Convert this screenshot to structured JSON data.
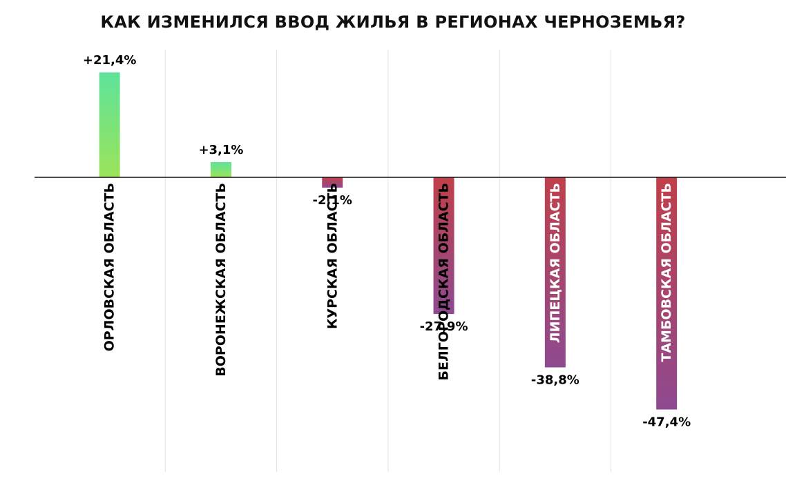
{
  "chart_data": {
    "type": "bar",
    "title": "КАК ИЗМЕНИЛСЯ ВВОД ЖИЛЬЯ В РЕГИОНАХ ЧЕРНОЗЕМЬЯ?",
    "categories": [
      "ОРЛОВСКАЯ ОБЛАСТЬ",
      "ВОРОНЕЖСКАЯ ОБЛАСТЬ",
      "КУРСКАЯ ОБЛАСТЬ",
      "БЕЛГОРОДСКАЯ ОБЛАСТЬ",
      "ЛИПЕЦКАЯ ОБЛАСТЬ",
      "ТАМБОВСКАЯ ОБЛАСТЬ"
    ],
    "values": [
      21.4,
      3.1,
      -2.1,
      -27.9,
      -38.8,
      -47.4
    ],
    "value_labels": [
      "+21,4%",
      "+3,1%",
      "-2,1%",
      "-27,9%",
      "-38,8%",
      "-47,4%"
    ],
    "unit": "%",
    "xlabel": "",
    "ylabel": "",
    "ylim": [
      -60,
      25
    ],
    "grid": true,
    "colors": {
      "positive_top": "#5ee39a",
      "positive_bottom": "#9be35a",
      "negative_top": "#c0404a",
      "negative_bottom": "#8e4a90",
      "baseline": "#111111",
      "grid": "#e2e2e2"
    }
  }
}
